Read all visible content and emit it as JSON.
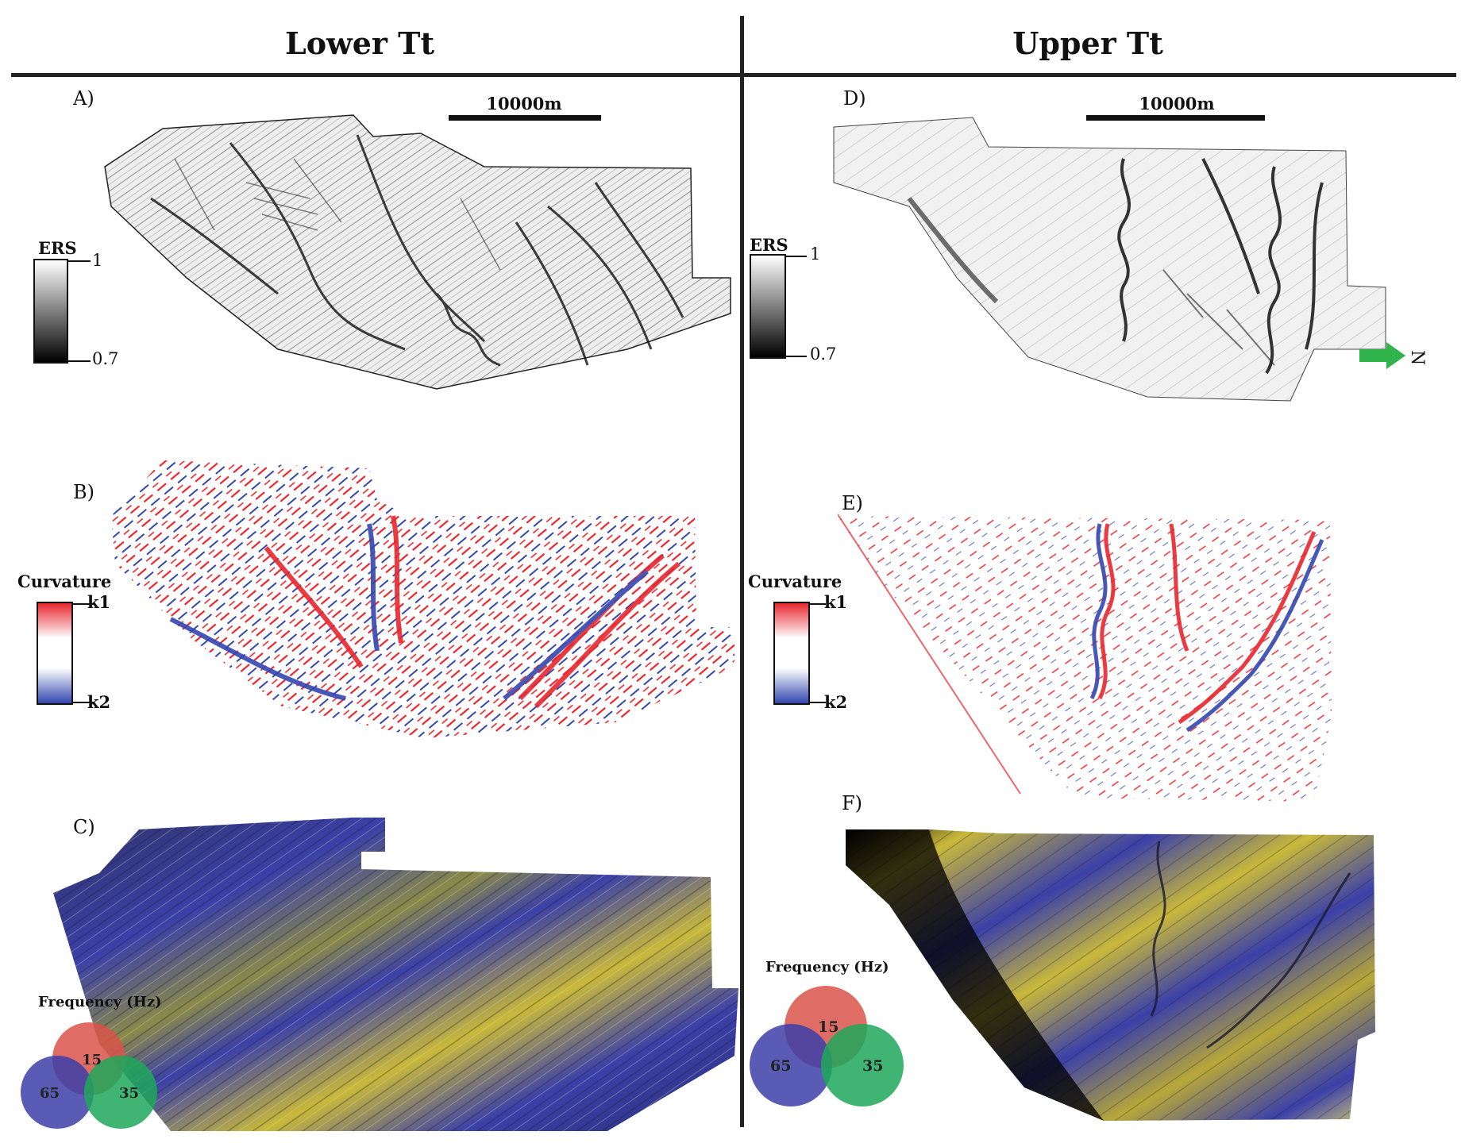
{
  "columns": {
    "left_title": "Lower Tt",
    "right_title": "Upper Tt"
  },
  "panels": {
    "a": "A)",
    "b": "B)",
    "c": "C)",
    "d": "D)",
    "e": "E)",
    "f": "F)"
  },
  "scale_bar": {
    "label": "10000m"
  },
  "ers_legend": {
    "title": "ERS",
    "max": "1",
    "min": "0.7"
  },
  "curvature_legend": {
    "title": "Curvature",
    "top": "k1",
    "bottom": "k2"
  },
  "frequency_legend": {
    "title": "Frequency (Hz)",
    "red": "15",
    "blue": "65",
    "green": "35",
    "colors": {
      "red": "#d9534a",
      "blue": "#3c3ea8",
      "green": "#1fa85a"
    }
  },
  "north_arrow": {
    "label": "N",
    "color": "#2fb34a"
  },
  "colors": {
    "k1": "#e8262e",
    "k2": "#3446b0",
    "rgb_blue": "#3b40a8",
    "rgb_yellow": "#d8c83a"
  }
}
